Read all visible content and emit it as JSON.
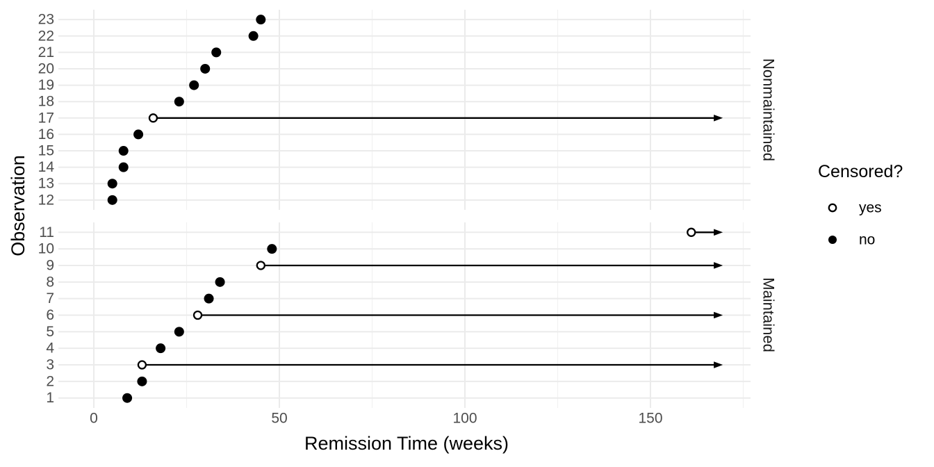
{
  "chart_data": {
    "type": "scatter",
    "title": "",
    "xlabel": "Remission Time (weeks)",
    "ylabel": "Observation",
    "x_ticks": [
      0,
      50,
      100,
      150
    ],
    "x_minor_ticks": [
      25,
      75,
      125,
      175
    ],
    "xlim": [
      -9.6,
      177
    ],
    "grid": true,
    "arrow_end_weeks": 169.5,
    "legend": {
      "title": "Censored?",
      "position": "right",
      "items": [
        {
          "label": "yes",
          "marker": "open-circle"
        },
        {
          "label": "no",
          "marker": "filled-circle"
        }
      ]
    },
    "facets": [
      {
        "label": "Nonmaintained",
        "observations": [
          {
            "id": 12,
            "time": 5,
            "censored": false
          },
          {
            "id": 13,
            "time": 5,
            "censored": false
          },
          {
            "id": 14,
            "time": 8,
            "censored": false
          },
          {
            "id": 15,
            "time": 8,
            "censored": false
          },
          {
            "id": 16,
            "time": 12,
            "censored": false
          },
          {
            "id": 17,
            "time": 16,
            "censored": true
          },
          {
            "id": 18,
            "time": 23,
            "censored": false
          },
          {
            "id": 19,
            "time": 27,
            "censored": false
          },
          {
            "id": 20,
            "time": 30,
            "censored": false
          },
          {
            "id": 21,
            "time": 33,
            "censored": false
          },
          {
            "id": 22,
            "time": 43,
            "censored": false
          },
          {
            "id": 23,
            "time": 45,
            "censored": false
          }
        ]
      },
      {
        "label": "Maintained",
        "observations": [
          {
            "id": 1,
            "time": 9,
            "censored": false
          },
          {
            "id": 2,
            "time": 13,
            "censored": false
          },
          {
            "id": 3,
            "time": 13,
            "censored": true
          },
          {
            "id": 4,
            "time": 18,
            "censored": false
          },
          {
            "id": 5,
            "time": 23,
            "censored": false
          },
          {
            "id": 6,
            "time": 28,
            "censored": true
          },
          {
            "id": 7,
            "time": 31,
            "censored": false
          },
          {
            "id": 8,
            "time": 34,
            "censored": false
          },
          {
            "id": 9,
            "time": 45,
            "censored": true
          },
          {
            "id": 10,
            "time": 48,
            "censored": false
          },
          {
            "id": 11,
            "time": 161,
            "censored": true
          }
        ]
      }
    ],
    "colors": {
      "point": "#000000",
      "tick_label": "#4d4d4d",
      "grid_major": "#ebebeb",
      "grid_minor": "#f1f1f1",
      "background": "#ffffff"
    }
  }
}
